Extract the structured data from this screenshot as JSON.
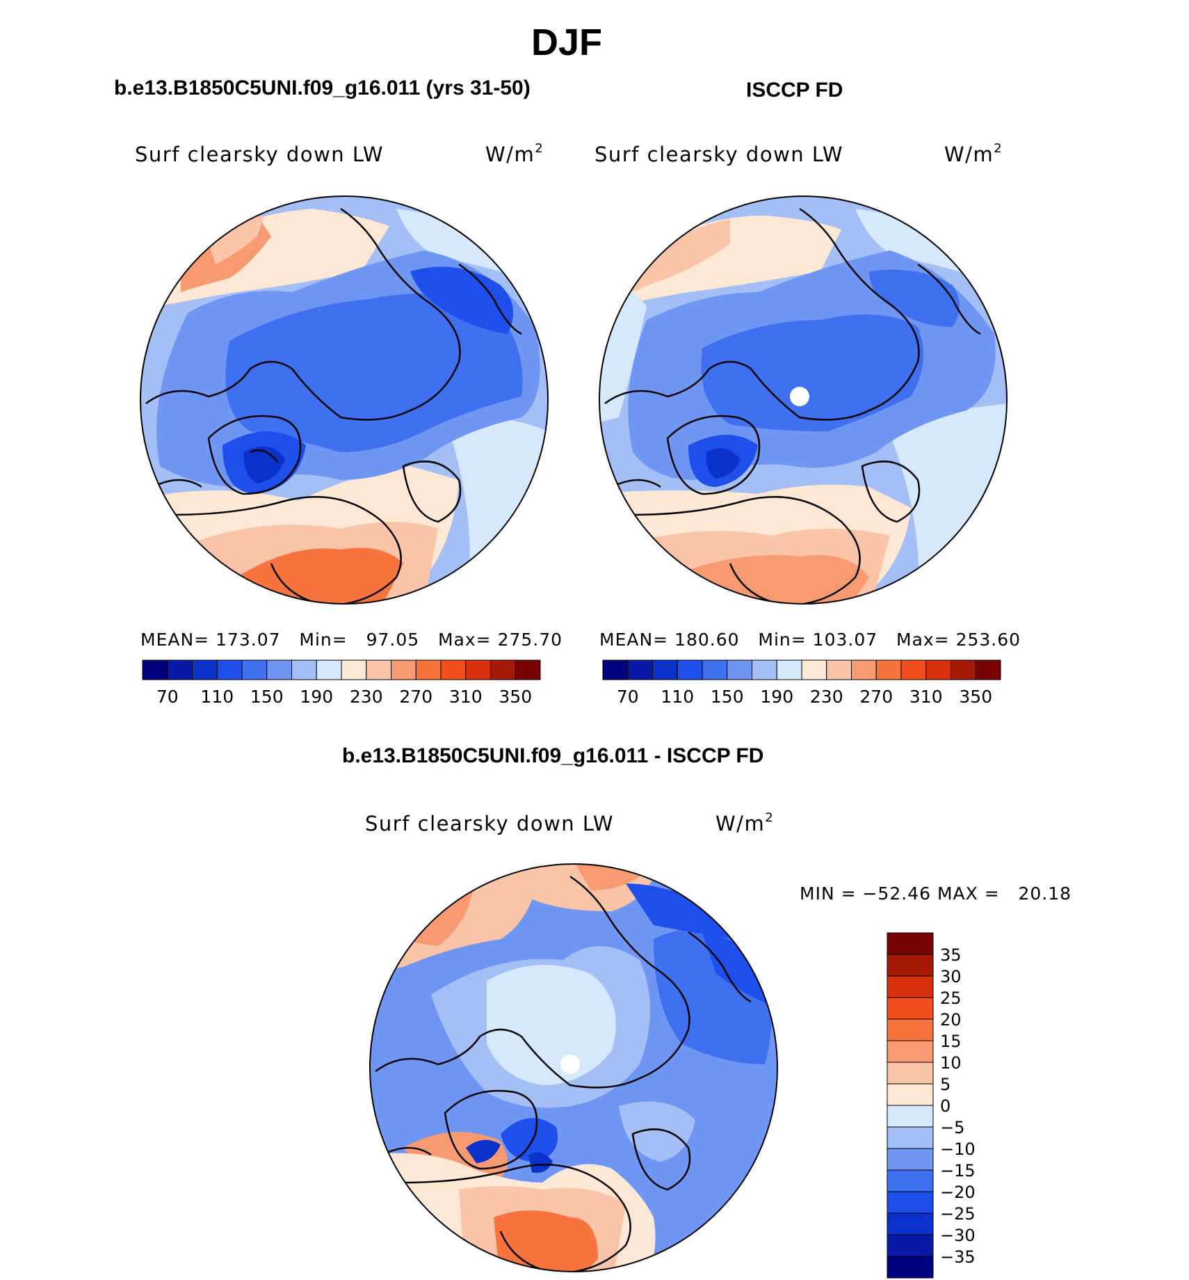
{
  "page": {
    "title": "DJF"
  },
  "panels": {
    "model": {
      "case_title": "b.e13.B1850C5UNI.f09_g16.011 (yrs 31-50)",
      "var_label": "Surf clearsky down LW",
      "units": "W/m",
      "units_exp": "2",
      "stats": {
        "mean_label": "MEAN=",
        "mean": "173.07",
        "min_label": "Min=",
        "min": "97.05",
        "max_label": "Max=",
        "max": "275.70"
      }
    },
    "obs": {
      "case_title": "ISCCP FD",
      "var_label": "Surf clearsky down LW",
      "units": "W/m",
      "units_exp": "2",
      "stats": {
        "mean_label": "MEAN=",
        "mean": "180.60",
        "min_label": "Min=",
        "min": "103.07",
        "max_label": "Max=",
        "max": "253.60"
      }
    },
    "diff": {
      "case_title": "b.e13.B1850C5UNI.f09_g16.011 - ISCCP FD",
      "var_label": "Surf clearsky down LW",
      "units": "W/m",
      "units_exp": "2",
      "minmax_text": "MIN = −52.46 MAX =   20.18"
    }
  },
  "colorbars": {
    "abs": {
      "colors": [
        "#00007f",
        "#0a1aa8",
        "#0b33cc",
        "#1f4fea",
        "#3f70f0",
        "#6e96f2",
        "#a3bff5",
        "#d6e8fb",
        "#fde8d6",
        "#f9c4a7",
        "#f79a71",
        "#f7743f",
        "#f24e1e",
        "#d93010",
        "#a81a08",
        "#7a0404"
      ],
      "tick_labels": [
        "70",
        "110",
        "150",
        "190",
        "230",
        "270",
        "310",
        "350"
      ]
    },
    "diff": {
      "colors": [
        "#00007f",
        "#0a1aa8",
        "#0b33cc",
        "#1f4fea",
        "#3f70f0",
        "#6e96f2",
        "#a3bff5",
        "#d6e8fb",
        "#fde8d6",
        "#f9c4a7",
        "#f79a71",
        "#f7743f",
        "#f24e1e",
        "#d93010",
        "#a81a08",
        "#7a0404"
      ],
      "tick_labels": [
        "−35",
        "−30",
        "−25",
        "−20",
        "−15",
        "−10",
        "−5",
        "0",
        "5",
        "10",
        "15",
        "20",
        "25",
        "30",
        "35"
      ]
    }
  }
}
